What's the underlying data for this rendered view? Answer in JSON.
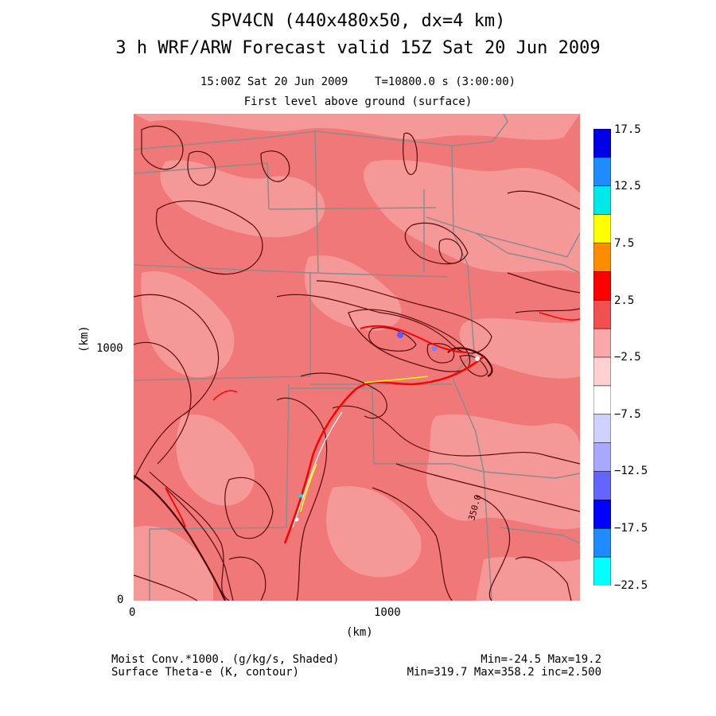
{
  "header": {
    "title_line1": "SPV4CN (440x480x50, dx=4 km)",
    "title_line2": "3 h WRF/ARW Forecast valid 15Z Sat 20 Jun 2009",
    "subtitle_line1": "15:00Z Sat 20 Jun 2009    T=10800.0 s (3:00:00)",
    "subtitle_line2": "First level above ground (surface)"
  },
  "axes": {
    "x_label": "(km)",
    "y_label": "(km)",
    "x_ticks": [
      "0",
      "1000"
    ],
    "y_ticks": [
      "0",
      "1000"
    ],
    "x_range": [
      0,
      1760
    ],
    "y_range": [
      0,
      1920
    ]
  },
  "map": {
    "contour_label": "350.0",
    "background_color": "#f07878",
    "contour_color": "#5a0a0a",
    "boundary_color": "#8c8c8c"
  },
  "colorbar": {
    "labels": [
      "17.5",
      "12.5",
      "7.5",
      "2.5",
      "−2.5",
      "−7.5",
      "−12.5",
      "−17.5",
      "−22.5"
    ],
    "colors": [
      "#0000e8",
      "#1e8cff",
      "#00e8e8",
      "#ffff00",
      "#ff8c00",
      "#ff0000",
      "#f05050",
      "#f8a8a8",
      "#ffd0d0",
      "#ffffff",
      "#d0d0ff",
      "#a8a8ff",
      "#6464ff",
      "#0000ff",
      "#1e8cff",
      "#00ffff"
    ]
  },
  "footer": {
    "left_line1": "Moist Conv.*1000. (g/kg/s, Shaded)",
    "left_line2": "Surface Theta-e (K, contour)",
    "right_line1": "Min=-24.5 Max=19.2",
    "right_line2": "Min=319.7 Max=358.2 inc=2.500"
  }
}
